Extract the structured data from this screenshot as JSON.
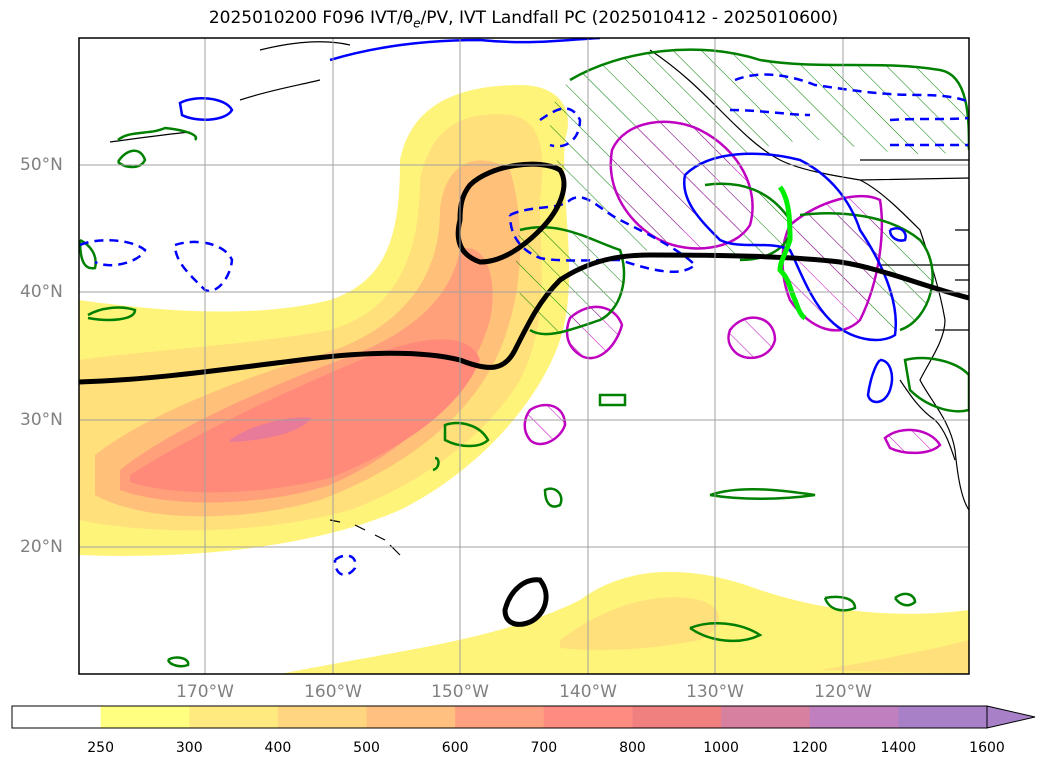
{
  "title": "2025010200 F096 IVT/θ",
  "title_sub": "e",
  "title_rest": "/PV, IVT Landfall PC (2025010412 - 2025010600)",
  "lat_labels": [
    "50°N",
    "40°N",
    "30°N",
    "20°N"
  ],
  "lon_labels": [
    "170°W",
    "160°W",
    "150°W",
    "140°W",
    "130°W",
    "120°W"
  ],
  "colorbar": {
    "ticks": [
      "250",
      "300",
      "400",
      "500",
      "600",
      "700",
      "800",
      "1000",
      "1200",
      "1400",
      "1600"
    ],
    "colors": [
      "#ffffff",
      "#ffff80",
      "#ffea80",
      "#ffd580",
      "#ffc080",
      "#ffa080",
      "#ff8c80",
      "#f08080",
      "#d880a0",
      "#c080c0",
      "#a880c8"
    ],
    "extend": "max"
  },
  "colors": {
    "ivt_fill_light": "#fff07a",
    "ivt_fill_mid": "#ffb070",
    "ivt_fill_high": "#ff8878",
    "ivt_fill_peak": "#e87a9a",
    "theta_contour": "#000000",
    "pv_contour": "#0000ff",
    "green_contour": "#008000",
    "magenta_contour": "#c000c0",
    "landfall_line": "#00ee00"
  }
}
